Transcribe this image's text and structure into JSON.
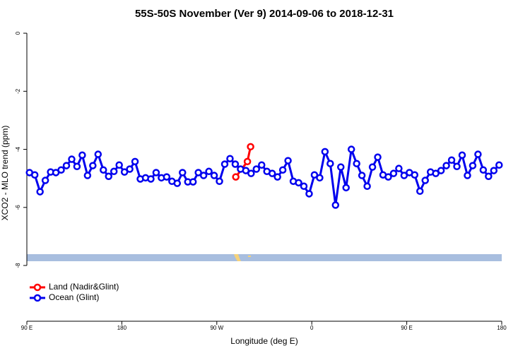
{
  "chart_data": {
    "type": "line",
    "title": "55S-50S November (Ver 9)   2014-09-06 to 2018-12-31",
    "x_label": "Longitude (deg E)",
    "y_label": "XCO2 - MLO trend (ppm)",
    "xlim": [
      90,
      540
    ],
    "xticks": [
      {
        "value": 90,
        "label": "90 E"
      },
      180,
      {
        "value": 270,
        "label": "90 W"
      },
      {
        "value": 360,
        "label": "0"
      },
      {
        "value": 450,
        "label": "90 E"
      },
      {
        "value": 540,
        "label": "180"
      }
    ],
    "ylim": [
      -9.92,
      0.22
    ],
    "yticks": [
      0,
      -2,
      -4,
      -6,
      -8
    ],
    "legend": "bottomleft",
    "series": [
      {
        "name": "Land (Nadir&Glint)",
        "color": "#ff0000",
        "x": [
          288,
          299,
          302
        ],
        "values": [
          -4.95,
          -4.42,
          -3.91
        ]
      },
      {
        "name": "Ocean (Glint)",
        "color": "#0000ee",
        "x": [
          92.5,
          97.5,
          102.5,
          107.5,
          112.5,
          117.5,
          122.5,
          127.5,
          132.5,
          137.5,
          142.5,
          147.5,
          152.5,
          157.5,
          162.5,
          167.5,
          172.5,
          177.5,
          182.5,
          187.5,
          192.5,
          197.5,
          202.5,
          207.5,
          212.5,
          217.5,
          222.5,
          227.5,
          232.5,
          237.5,
          242.5,
          247.5,
          252.5,
          257.5,
          262.5,
          267.5,
          272.5,
          277.5,
          282.5,
          287.5,
          292.5,
          297.5,
          302.5,
          307.5,
          312.5,
          317.5,
          322.5,
          327.5,
          332.5,
          337.5,
          342.5,
          347.5,
          352.5,
          357.5,
          362.5,
          367.5,
          372.5,
          377.5,
          382.5,
          387.5,
          392.5,
          397.5,
          402.5,
          407.5,
          412.5,
          417.5,
          422.5,
          427.5,
          432.5,
          437.5,
          442.5,
          447.5,
          452.5,
          457.5,
          462.5,
          467.5,
          472.5,
          477.5,
          482.5,
          487.5,
          492.5,
          497.5,
          502.5,
          507.5,
          512.5,
          517.5,
          522.5,
          527.5,
          532.5,
          537.5
        ],
        "values": [
          -4.8,
          -4.88,
          -5.46,
          -5.07,
          -4.78,
          -4.8,
          -4.71,
          -4.56,
          -4.34,
          -4.59,
          -4.2,
          -4.9,
          -4.56,
          -4.17,
          -4.71,
          -4.93,
          -4.76,
          -4.54,
          -4.78,
          -4.68,
          -4.42,
          -5.02,
          -4.98,
          -5.02,
          -4.8,
          -4.98,
          -4.95,
          -5.1,
          -5.17,
          -4.8,
          -5.12,
          -5.12,
          -4.8,
          -4.9,
          -4.76,
          -4.9,
          -5.1,
          -4.51,
          -4.32,
          -4.51,
          -4.68,
          -4.73,
          -4.83,
          -4.68,
          -4.54,
          -4.76,
          -4.83,
          -4.95,
          -4.71,
          -4.39,
          -5.1,
          -5.15,
          -5.27,
          -5.53,
          -4.88,
          -4.98,
          -4.08,
          -4.49,
          -5.92,
          -4.61,
          -5.32,
          -4.0,
          -4.49,
          -4.9,
          -5.27,
          -4.61,
          -4.27,
          -4.88,
          -4.95,
          -4.83,
          -4.66,
          -4.9,
          -4.8,
          -4.88,
          -5.44,
          -5.07,
          -4.78,
          -4.83,
          -4.73,
          -4.56,
          -4.37,
          -4.59,
          -4.2,
          -4.9,
          -4.56,
          -4.17,
          -4.71,
          -4.93,
          -4.73,
          -4.54
        ]
      }
    ]
  }
}
